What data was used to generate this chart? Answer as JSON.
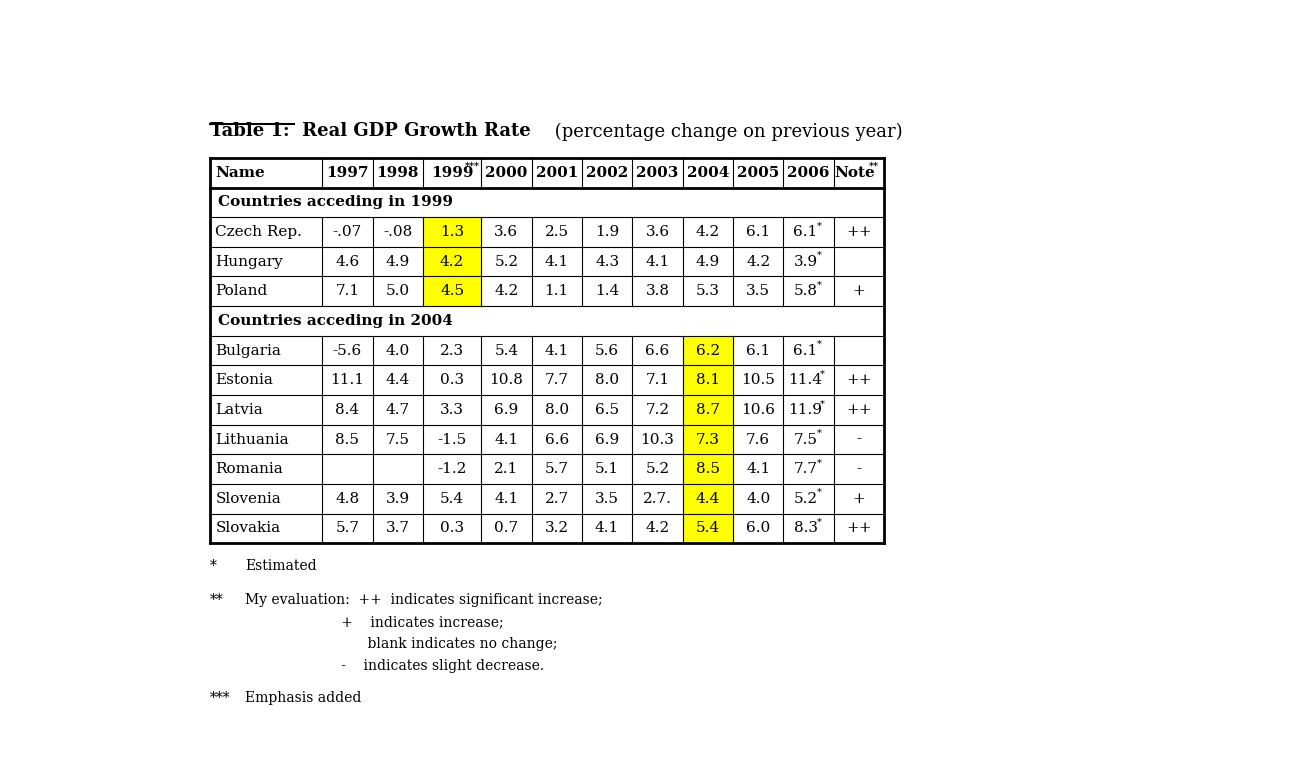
{
  "title_bold": "Table 1:  Real GDP Growth Rate",
  "title_normal": " (percentage change on previous year)",
  "headers": [
    "Name",
    "1997",
    "1998",
    "1999",
    "2000",
    "2001",
    "2002",
    "2003",
    "2004",
    "2005",
    "2006",
    "Note"
  ],
  "col_widths": [
    1.45,
    0.65,
    0.65,
    0.75,
    0.65,
    0.65,
    0.65,
    0.65,
    0.65,
    0.65,
    0.65,
    0.65
  ],
  "group1_label": "Countries acceding in 1999",
  "group2_label": "Countries acceding in 2004",
  "rows": [
    [
      "Czech Rep.",
      "-.07",
      "-.08",
      "1.3",
      "3.6",
      "2.5",
      "1.9",
      "3.6",
      "4.2",
      "6.1",
      "6.1*",
      "++"
    ],
    [
      "Hungary",
      "4.6",
      "4.9",
      "4.2",
      "5.2",
      "4.1",
      "4.3",
      "4.1",
      "4.9",
      "4.2",
      "3.9*",
      ""
    ],
    [
      "Poland",
      "7.1",
      "5.0",
      "4.5",
      "4.2",
      "1.1",
      "1.4",
      "3.8",
      "5.3",
      "3.5",
      "5.8*",
      "+"
    ],
    [
      "Bulgaria",
      "-5.6",
      "4.0",
      "2.3",
      "5.4",
      "4.1",
      "5.6",
      "6.6",
      "6.2",
      "6.1",
      "6.1*",
      ""
    ],
    [
      "Estonia",
      "11.1",
      "4.4",
      "0.3",
      "10.8",
      "7.7",
      "8.0",
      "7.1",
      "8.1",
      "10.5",
      "11.4*",
      "++"
    ],
    [
      "Latvia",
      "8.4",
      "4.7",
      "3.3",
      "6.9",
      "8.0",
      "6.5",
      "7.2",
      "8.7",
      "10.6",
      "11.9*",
      "++"
    ],
    [
      "Lithuania",
      "8.5",
      "7.5",
      "-1.5",
      "4.1",
      "6.6",
      "6.9",
      "10.3",
      "7.3",
      "7.6",
      "7.5*",
      "-"
    ],
    [
      "Romania",
      "",
      "",
      "-1.2",
      "2.1",
      "5.7",
      "5.1",
      "5.2",
      "8.5",
      "4.1",
      "7.7*",
      "-"
    ],
    [
      "Slovenia",
      "4.8",
      "3.9",
      "5.4",
      "4.1",
      "2.7",
      "3.5",
      "2.7.",
      "4.4",
      "4.0",
      "5.2*",
      "+"
    ],
    [
      "Slovakia",
      "5.7",
      "3.7",
      "0.3",
      "0.7",
      "3.2",
      "4.1",
      "4.2",
      "5.4",
      "6.0",
      "8.3*",
      "++"
    ]
  ],
  "highlight_col_1999": 3,
  "highlight_col_2004": 8,
  "bg_color": "#ffffff",
  "yellow": "#ffff00",
  "border_color": "#000000"
}
